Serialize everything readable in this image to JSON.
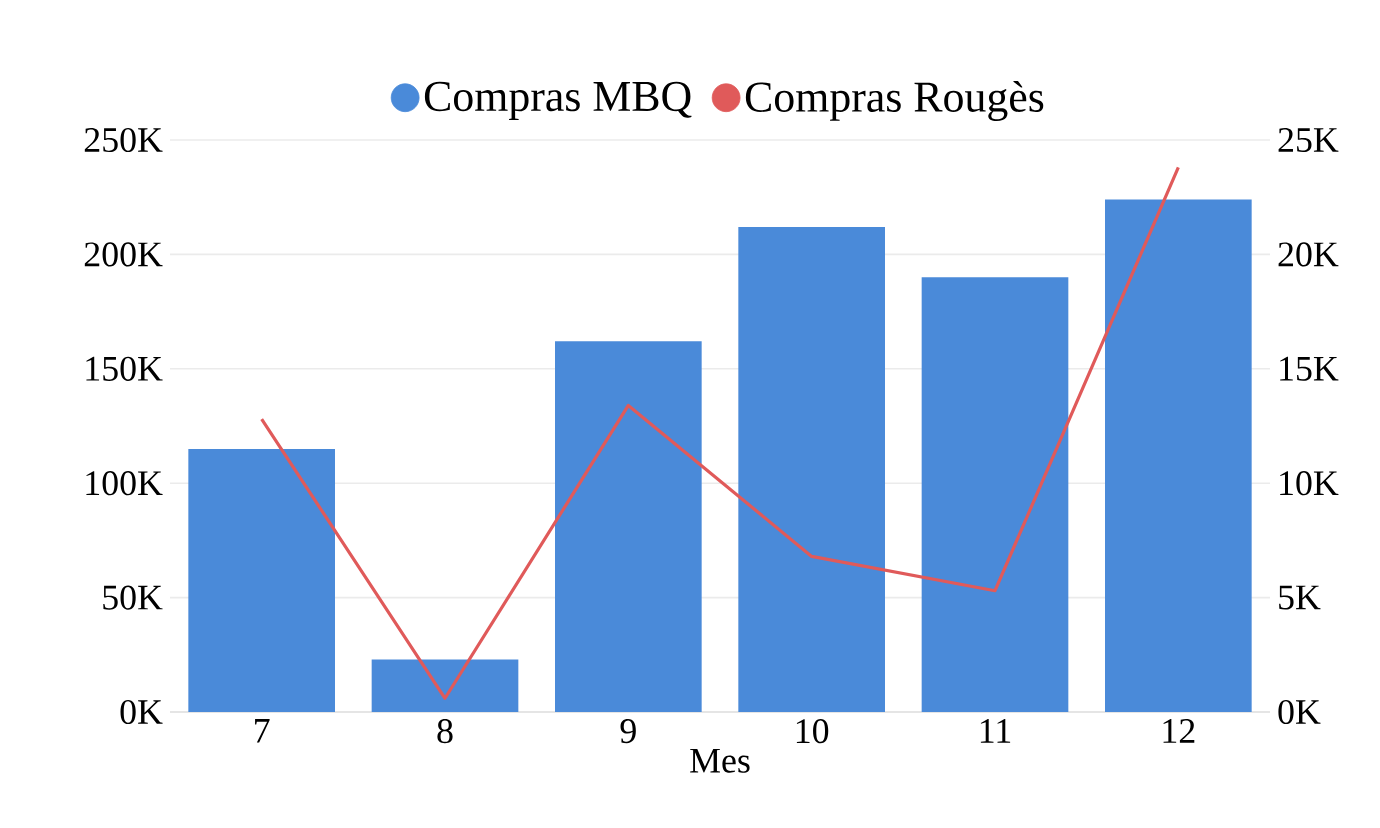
{
  "chart_data": {
    "type": "bar",
    "xlabel": "Mes",
    "categories": [
      "7",
      "8",
      "9",
      "10",
      "11",
      "12"
    ],
    "series": [
      {
        "name": "Compras MBQ",
        "color": "#4a8ad9",
        "values": [
          115000,
          23000,
          162000,
          212000,
          190000,
          224000
        ]
      },
      {
        "name": "Compras Rougès",
        "type": "line",
        "axis": "y2",
        "color": "#e05a5a",
        "values": [
          12800,
          600,
          13400,
          6800,
          5300,
          23800
        ]
      }
    ],
    "ylim": [
      0,
      250000
    ],
    "yticks": [
      {
        "value": 0,
        "label": "0K"
      },
      {
        "value": 50000,
        "label": "50K"
      },
      {
        "value": 100000,
        "label": "100K"
      },
      {
        "value": 150000,
        "label": "150K"
      },
      {
        "value": 200000,
        "label": "200K"
      },
      {
        "value": 250000,
        "label": "250K"
      }
    ],
    "y2lim": [
      0,
      25000
    ],
    "y2ticks": [
      {
        "value": 0,
        "label": "0K"
      },
      {
        "value": 5000,
        "label": "5K"
      },
      {
        "value": 10000,
        "label": "10K"
      },
      {
        "value": 15000,
        "label": "15K"
      },
      {
        "value": 20000,
        "label": "20K"
      },
      {
        "value": 25000,
        "label": "25K"
      }
    ],
    "grid": "y",
    "legend": "top",
    "marker": "none",
    "line_style": "solid"
  }
}
